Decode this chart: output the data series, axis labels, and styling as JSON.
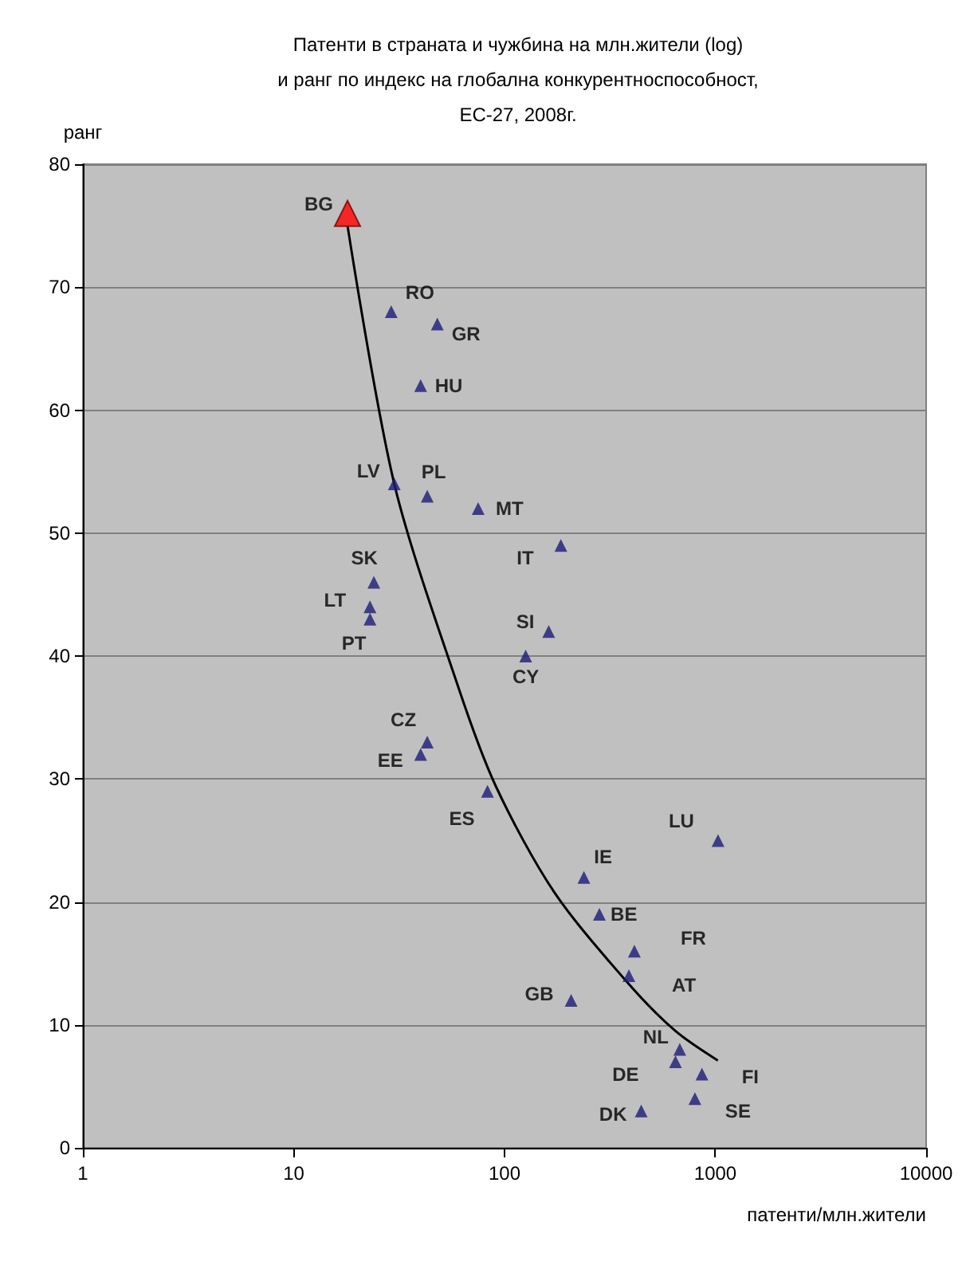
{
  "chart_data": {
    "type": "scatter",
    "title": "Патенти в страната и чужбина на млн.жители (log)\nи ранг по индекс на глобална конкурентноспособност,\nЕС-27, 2008г.",
    "xlabel": "патенти/млн.жители",
    "ylabel": "ранг",
    "log": "x",
    "xlim": [
      1,
      10000
    ],
    "xticks": [
      1,
      10,
      100,
      1000,
      10000
    ],
    "ylim": [
      0,
      80
    ],
    "yticks": [
      0,
      10,
      20,
      30,
      40,
      50,
      60,
      70,
      80
    ],
    "grid": "y",
    "marker": "triangle",
    "series": [
      {
        "color": "#ff0000",
        "x": [
          18
        ],
        "values": [
          76
        ]
      },
      {
        "color": "#1c1c78",
        "x": [
          29,
          48,
          40,
          30,
          43,
          75,
          185,
          24,
          23,
          23,
          162,
          126,
          43,
          40,
          83,
          1030,
          238,
          282,
          413,
          389,
          207,
          678,
          647,
          864,
          800,
          445
        ],
        "values": [
          68,
          67,
          62,
          54,
          53,
          52,
          49,
          46,
          44,
          43,
          42,
          40,
          33,
          32,
          29,
          25,
          22,
          19,
          16,
          14,
          12,
          8,
          7,
          6,
          4,
          3
        ]
      },
      {
        "type": "line",
        "marker": "none",
        "color": "#000000",
        "x": [
          18,
          30,
          60,
          91,
          172,
          385,
          647,
          1028
        ],
        "values": [
          75,
          54,
          37.6,
          29.4,
          20.8,
          13.4,
          9.5,
          7.1
        ]
      }
    ],
    "annotations": [
      {
        "text": "BG",
        "x": 18,
        "y": 76
      },
      {
        "text": "RO",
        "x": 29,
        "y": 68
      },
      {
        "text": "GR",
        "x": 48,
        "y": 67
      },
      {
        "text": "HU",
        "x": 40,
        "y": 62
      },
      {
        "text": "LV",
        "x": 30,
        "y": 54
      },
      {
        "text": "PL",
        "x": 43,
        "y": 53
      },
      {
        "text": "MT",
        "x": 75,
        "y": 52
      },
      {
        "text": "IT",
        "x": 185,
        "y": 49
      },
      {
        "text": "SK",
        "x": 24,
        "y": 46
      },
      {
        "text": "LT",
        "x": 23,
        "y": 44
      },
      {
        "text": "PT",
        "x": 23,
        "y": 43
      },
      {
        "text": "SI",
        "x": 162,
        "y": 42
      },
      {
        "text": "CY",
        "x": 126,
        "y": 40
      },
      {
        "text": "CZ",
        "x": 43,
        "y": 33
      },
      {
        "text": "EE",
        "x": 40,
        "y": 32
      },
      {
        "text": "ES",
        "x": 83,
        "y": 29
      },
      {
        "text": "LU",
        "x": 1030,
        "y": 25
      },
      {
        "text": "IE",
        "x": 238,
        "y": 22
      },
      {
        "text": "BE",
        "x": 282,
        "y": 19
      },
      {
        "text": "FR",
        "x": 413,
        "y": 16
      },
      {
        "text": "AT",
        "x": 389,
        "y": 14
      },
      {
        "text": "GB",
        "x": 207,
        "y": 12
      },
      {
        "text": "NL",
        "x": 678,
        "y": 8
      },
      {
        "text": "DE",
        "x": 647,
        "y": 7
      },
      {
        "text": "FI",
        "x": 864,
        "y": 6
      },
      {
        "text": "SE",
        "x": 800,
        "y": 4
      },
      {
        "text": "DK",
        "x": 445,
        "y": 3
      }
    ]
  }
}
